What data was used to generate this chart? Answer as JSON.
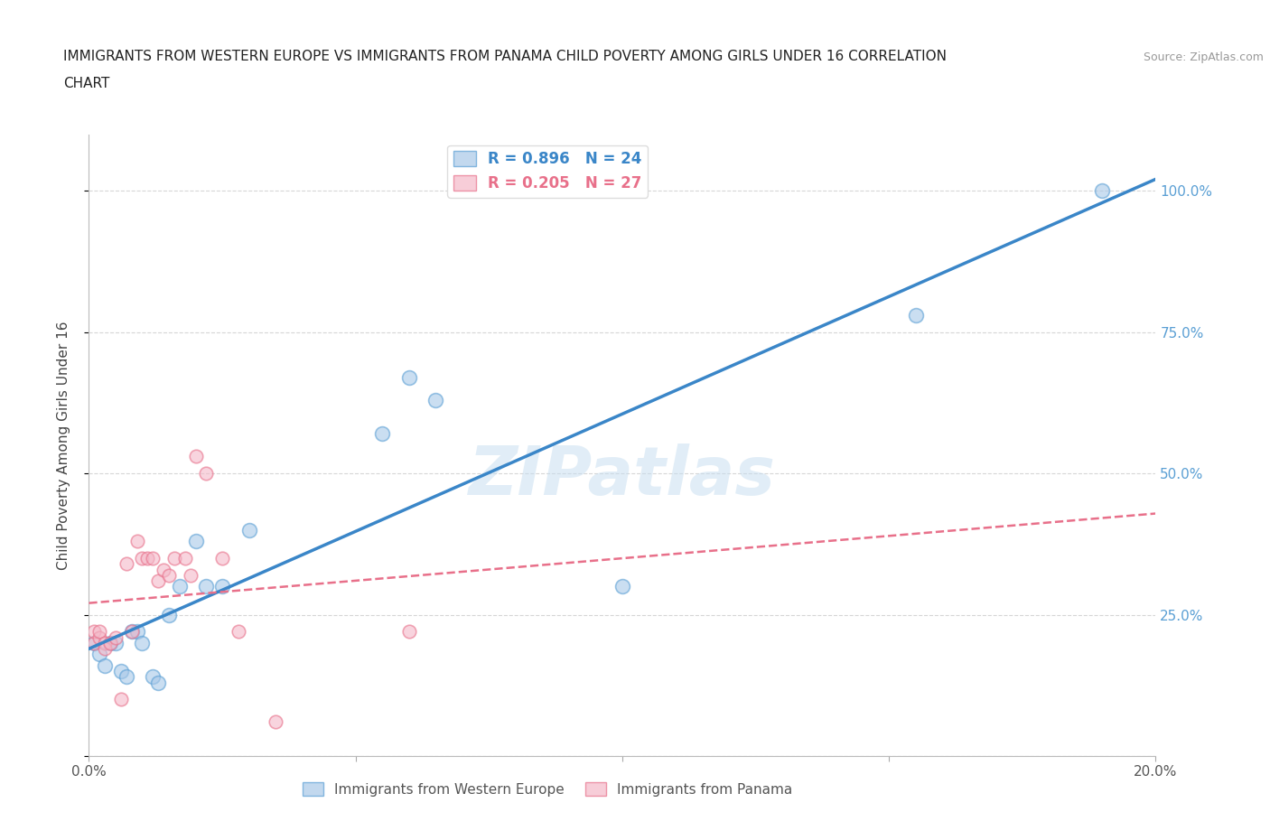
{
  "title_line1": "IMMIGRANTS FROM WESTERN EUROPE VS IMMIGRANTS FROM PANAMA CHILD POVERTY AMONG GIRLS UNDER 16 CORRELATION",
  "title_line2": "CHART",
  "source": "Source: ZipAtlas.com",
  "ylabel": "Child Poverty Among Girls Under 16",
  "watermark": "ZIPatlas",
  "blue_r": 0.896,
  "blue_n": 24,
  "pink_r": 0.205,
  "pink_n": 27,
  "blue_color": "#a8c8e8",
  "pink_color": "#f4b8c8",
  "blue_edge_color": "#5a9fd4",
  "pink_edge_color": "#e8708a",
  "blue_line_color": "#3a86c8",
  "pink_line_color": "#e8708a",
  "background_color": "#ffffff",
  "grid_color": "#cccccc",
  "ytick_color": "#5a9fd4",
  "blue_scatter_x": [
    0.001,
    0.002,
    0.003,
    0.004,
    0.005,
    0.006,
    0.007,
    0.008,
    0.009,
    0.01,
    0.012,
    0.013,
    0.015,
    0.017,
    0.02,
    0.022,
    0.025,
    0.03,
    0.055,
    0.06,
    0.065,
    0.1,
    0.155,
    0.19
  ],
  "blue_scatter_y": [
    0.2,
    0.18,
    0.16,
    0.2,
    0.2,
    0.15,
    0.14,
    0.22,
    0.22,
    0.2,
    0.14,
    0.13,
    0.25,
    0.3,
    0.38,
    0.3,
    0.3,
    0.4,
    0.57,
    0.67,
    0.63,
    0.3,
    0.78,
    1.0
  ],
  "pink_scatter_x": [
    0.001,
    0.001,
    0.002,
    0.002,
    0.003,
    0.003,
    0.004,
    0.005,
    0.006,
    0.007,
    0.008,
    0.009,
    0.01,
    0.011,
    0.012,
    0.013,
    0.014,
    0.015,
    0.016,
    0.018,
    0.019,
    0.02,
    0.022,
    0.025,
    0.028,
    0.035,
    0.06
  ],
  "pink_scatter_y": [
    0.2,
    0.22,
    0.21,
    0.22,
    0.2,
    0.19,
    0.2,
    0.21,
    0.1,
    0.34,
    0.22,
    0.38,
    0.35,
    0.35,
    0.35,
    0.31,
    0.33,
    0.32,
    0.35,
    0.35,
    0.32,
    0.53,
    0.5,
    0.35,
    0.22,
    0.06,
    0.22
  ],
  "blue_scatter_size": 130,
  "pink_scatter_size": 110,
  "xlim": [
    0,
    0.2
  ],
  "ylim": [
    0,
    1.1
  ],
  "yticks": [
    0.0,
    0.25,
    0.5,
    0.75,
    1.0
  ],
  "ytick_labels_right": [
    "",
    "25.0%",
    "50.0%",
    "75.0%",
    "100.0%"
  ],
  "xtick_positions": [
    0.0,
    0.05,
    0.1,
    0.15,
    0.2
  ],
  "xtick_labels": [
    "0.0%",
    "",
    "",
    "",
    "20.0%"
  ]
}
